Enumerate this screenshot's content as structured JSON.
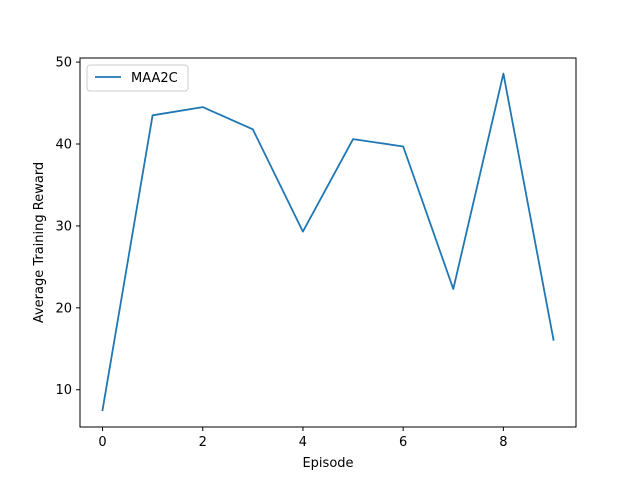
{
  "chart_data": {
    "type": "line",
    "xlabel": "Episode",
    "ylabel": "Average Training Reward",
    "xlim": [
      -0.45,
      9.45
    ],
    "ylim": [
      5.45,
      50.5
    ],
    "xticks": [
      "0",
      "2",
      "4",
      "6",
      "8"
    ],
    "yticks": [
      "10",
      "20",
      "30",
      "40",
      "50"
    ],
    "grid": false,
    "legend_position": "top-left",
    "series": [
      {
        "name": "MAA2C",
        "color": "#1f77b4",
        "x": [
          0,
          1,
          2,
          3,
          4,
          5,
          6,
          7,
          8,
          9
        ],
        "values": [
          7.5,
          43.5,
          44.5,
          41.8,
          29.3,
          40.6,
          39.7,
          22.3,
          48.6,
          16.1
        ]
      }
    ]
  }
}
